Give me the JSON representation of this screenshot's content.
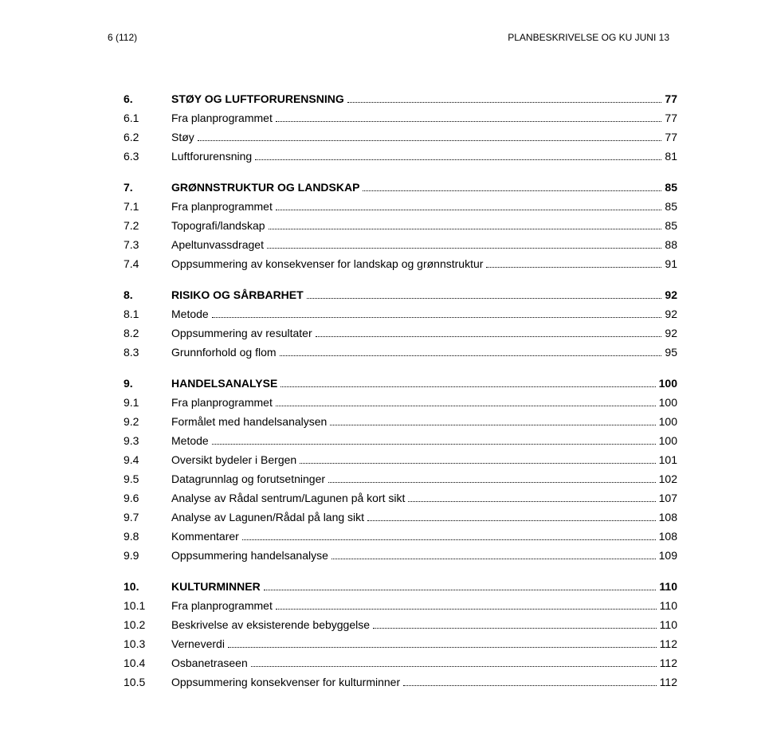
{
  "header": {
    "left": "6 (112)",
    "right": "PLANBESKRIVELSE OG KU JUNI 13"
  },
  "toc": [
    {
      "num": "6.",
      "title": "STØY OG LUFTFORURENSNING",
      "page": "77",
      "head": true,
      "first": true
    },
    {
      "num": "6.1",
      "title": "Fra planprogrammet",
      "page": "77"
    },
    {
      "num": "6.2",
      "title": "Støy",
      "page": "77"
    },
    {
      "num": "6.3",
      "title": "Luftforurensning",
      "page": "81"
    },
    {
      "num": "7.",
      "title": "GRØNNSTRUKTUR OG LANDSKAP",
      "page": "85",
      "head": true
    },
    {
      "num": "7.1",
      "title": "Fra planprogrammet",
      "page": "85"
    },
    {
      "num": "7.2",
      "title": "Topografi/landskap",
      "page": "85"
    },
    {
      "num": "7.3",
      "title": "Apeltunvassdraget",
      "page": "88"
    },
    {
      "num": "7.4",
      "title": "Oppsummering av konsekvenser for landskap og grønnstruktur",
      "page": "91"
    },
    {
      "num": "8.",
      "title": "RISIKO OG SÅRBARHET",
      "page": "92",
      "head": true
    },
    {
      "num": "8.1",
      "title": "Metode",
      "page": "92"
    },
    {
      "num": "8.2",
      "title": "Oppsummering av resultater",
      "page": "92"
    },
    {
      "num": "8.3",
      "title": "Grunnforhold og flom",
      "page": "95"
    },
    {
      "num": "9.",
      "title": "HANDELSANALYSE",
      "page": "100",
      "head": true
    },
    {
      "num": "9.1",
      "title": "Fra planprogrammet",
      "page": "100"
    },
    {
      "num": "9.2",
      "title": "Formålet med handelsanalysen",
      "page": "100"
    },
    {
      "num": "9.3",
      "title": "Metode",
      "page": "100"
    },
    {
      "num": "9.4",
      "title": "Oversikt bydeler i Bergen",
      "page": "101"
    },
    {
      "num": "9.5",
      "title": "Datagrunnlag og forutsetninger",
      "page": "102"
    },
    {
      "num": "9.6",
      "title": "Analyse av Rådal sentrum/Lagunen på kort sikt",
      "page": "107"
    },
    {
      "num": "9.7",
      "title": "Analyse av Lagunen/Rådal på lang sikt",
      "page": "108"
    },
    {
      "num": "9.8",
      "title": "Kommentarer",
      "page": "108"
    },
    {
      "num": "9.9",
      "title": "Oppsummering handelsanalyse",
      "page": "109"
    },
    {
      "num": "10.",
      "title": "KULTURMINNER",
      "page": "110",
      "head": true
    },
    {
      "num": "10.1",
      "title": "Fra planprogrammet",
      "page": "110"
    },
    {
      "num": "10.2",
      "title": "Beskrivelse av eksisterende bebyggelse",
      "page": "110"
    },
    {
      "num": "10.3",
      "title": "Verneverdi",
      "page": "112"
    },
    {
      "num": "10.4",
      "title": "Osbanetraseen",
      "page": "112"
    },
    {
      "num": "10.5",
      "title": "Oppsummering konsekvenser for kulturminner",
      "page": "112"
    }
  ]
}
